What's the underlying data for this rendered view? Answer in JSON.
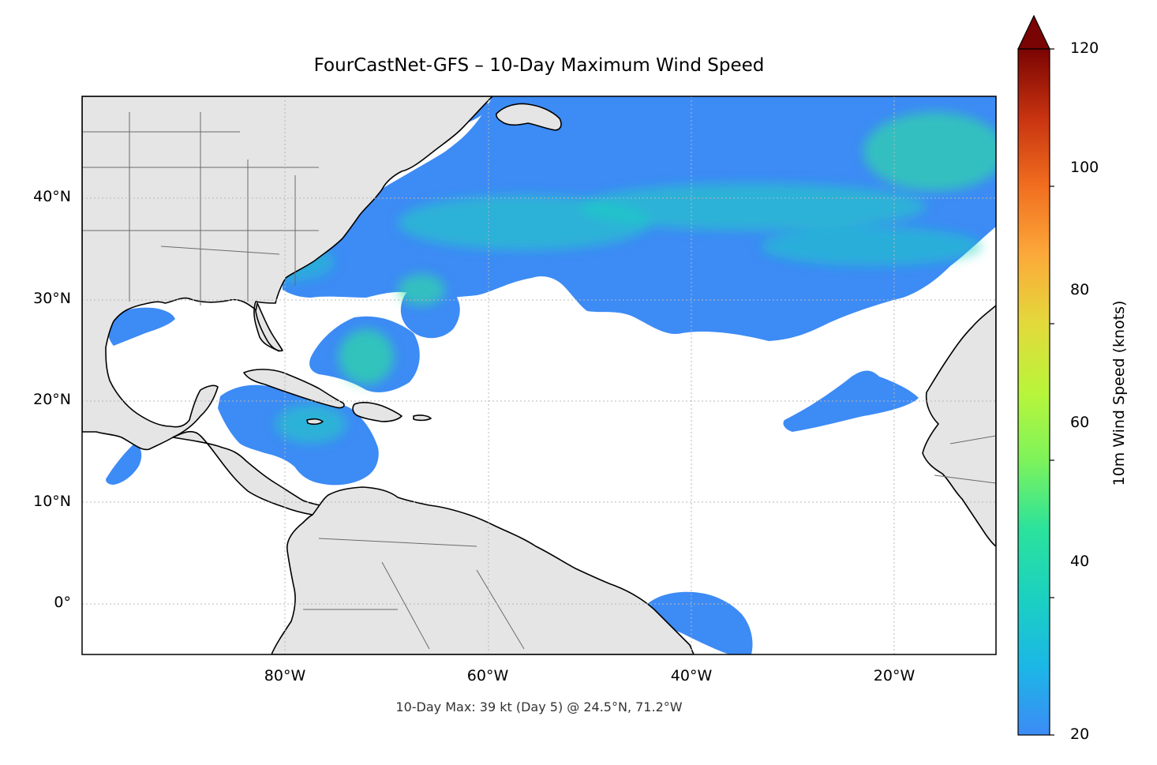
{
  "title": "FourCastNet-GFS – 10-Day Maximum Wind Speed",
  "footnote": "10-Day Max: 39 kt (Day 5) @ 24.5°N, 71.2°W",
  "colorbar": {
    "label": "10m Wind Speed (knots)",
    "min": 20,
    "max": 120,
    "extend": "max",
    "ticks": [
      "20",
      "40",
      "60",
      "80",
      "100",
      "120"
    ]
  },
  "map": {
    "lon_range": [
      -100,
      -10
    ],
    "lat_range": [
      -5,
      50
    ],
    "lat_ticks": [
      "40°N",
      "30°N",
      "20°N",
      "10°N",
      "0°"
    ],
    "lon_ticks": [
      "80°W",
      "60°W",
      "40°W",
      "20°W"
    ],
    "gridlines": "on",
    "land_color": "#e5e5e5",
    "colormap": "turbo"
  },
  "chart_data": {
    "type": "heatmap",
    "title": "FourCastNet-GFS – 10-Day Maximum Wind Speed",
    "variable": "10m Wind Speed (knots)",
    "vmin": 20,
    "vmax": 120,
    "max_point": {
      "value": 39,
      "day": 5,
      "lat": 24.5,
      "lon": -71.2
    }
  }
}
